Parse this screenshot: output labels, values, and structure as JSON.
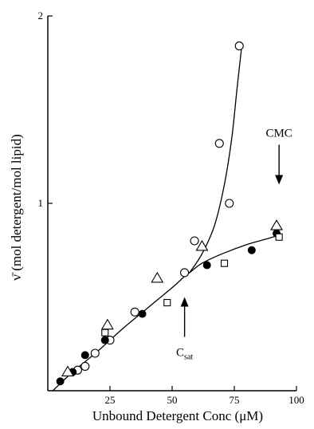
{
  "chart_data": {
    "type": "scatter",
    "xlabel": "Unbound Detergent Conc (μM)",
    "ylabel": "ν̄ (mol detergent/mol lipid)",
    "xlim": [
      0,
      100
    ],
    "ylim": [
      0,
      2
    ],
    "x_ticks": [
      "25",
      "50",
      "75",
      "100"
    ],
    "y_ticks": [
      "1",
      "2"
    ],
    "grid": false,
    "series": [
      {
        "marker": "open-circle",
        "points": [
          [
            12,
            0.11
          ],
          [
            15,
            0.13
          ],
          [
            19,
            0.2
          ],
          [
            25,
            0.27
          ],
          [
            35,
            0.42
          ],
          [
            55,
            0.63
          ],
          [
            59,
            0.8
          ],
          [
            69,
            1.32
          ],
          [
            73,
            1.0
          ],
          [
            77,
            1.84
          ]
        ]
      },
      {
        "marker": "filled-circle",
        "points": [
          [
            5,
            0.05
          ],
          [
            10,
            0.1
          ],
          [
            15,
            0.19
          ],
          [
            23,
            0.27
          ],
          [
            38,
            0.41
          ],
          [
            64,
            0.67
          ],
          [
            82,
            0.75
          ],
          [
            92,
            0.84
          ]
        ]
      },
      {
        "marker": "open-triangle",
        "points": [
          [
            8,
            0.1
          ],
          [
            24,
            0.35
          ],
          [
            44,
            0.6
          ],
          [
            62,
            0.77
          ],
          [
            92,
            0.88
          ]
        ]
      },
      {
        "marker": "open-square",
        "points": [
          [
            23,
            0.31
          ],
          [
            48,
            0.47
          ],
          [
            71,
            0.68
          ],
          [
            93,
            0.82
          ]
        ]
      }
    ],
    "curves": [
      {
        "role": "common",
        "points": [
          [
            2,
            0.0
          ],
          [
            10,
            0.1
          ],
          [
            20,
            0.21
          ],
          [
            30,
            0.33
          ],
          [
            40,
            0.44
          ],
          [
            50,
            0.55
          ],
          [
            55,
            0.61
          ],
          [
            57,
            0.63
          ]
        ]
      },
      {
        "role": "upper-branch",
        "points": [
          [
            57,
            0.63
          ],
          [
            62,
            0.73
          ],
          [
            67,
            0.88
          ],
          [
            71,
            1.1
          ],
          [
            74,
            1.35
          ],
          [
            76,
            1.6
          ],
          [
            78,
            1.84
          ]
        ]
      },
      {
        "role": "lower-branch",
        "points": [
          [
            57,
            0.63
          ],
          [
            62,
            0.68
          ],
          [
            70,
            0.73
          ],
          [
            80,
            0.78
          ],
          [
            88,
            0.81
          ],
          [
            93,
            0.83
          ]
        ]
      }
    ],
    "annotations": [
      {
        "text": "CMC",
        "arrow_tip": [
          93,
          1.1
        ],
        "arrow_direction": "down"
      },
      {
        "text": "C",
        "subscript": "sat",
        "arrow_tip": [
          55,
          0.5
        ],
        "arrow_direction": "up"
      }
    ]
  }
}
